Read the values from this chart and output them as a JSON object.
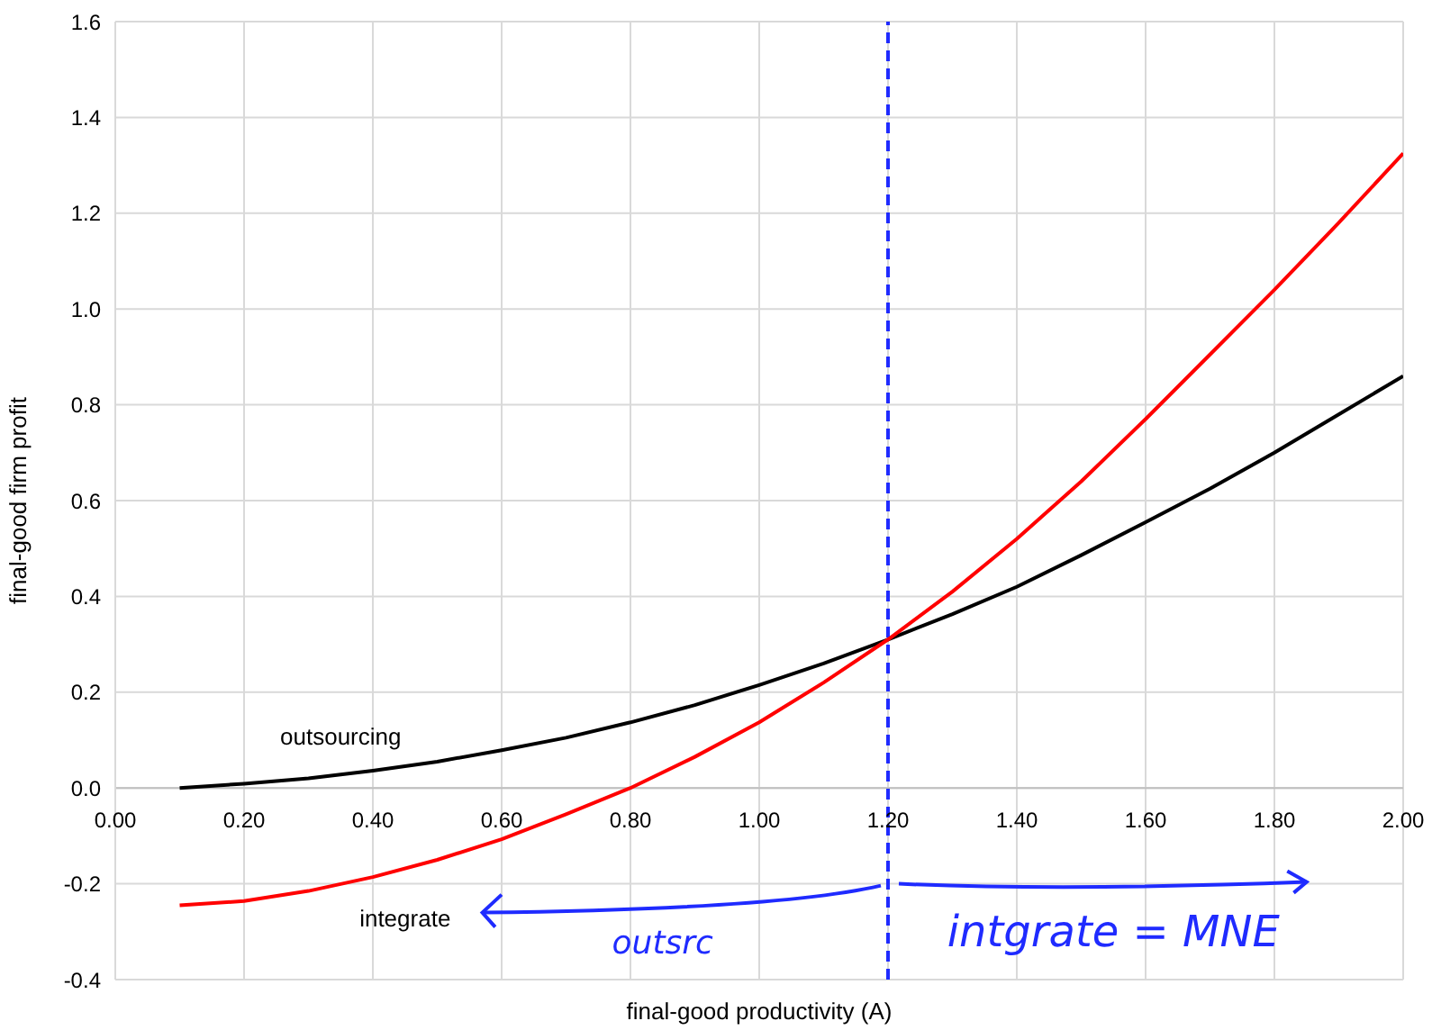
{
  "chart_data": {
    "type": "line",
    "xlabel": "final-good productivity (A)",
    "ylabel": "final-good firm profit",
    "x": [
      0.1,
      0.2,
      0.3,
      0.4,
      0.5,
      0.6,
      0.7,
      0.8,
      0.9,
      1.0,
      1.1,
      1.2,
      1.3,
      1.4,
      1.5,
      1.6,
      1.7,
      1.8,
      1.9,
      2.0
    ],
    "series": [
      {
        "name": "outsourcing",
        "color": "#000000",
        "values": [
          0,
          0.009,
          0.02,
          0.036,
          0.055,
          0.079,
          0.105,
          0.137,
          0.173,
          0.215,
          0.26,
          0.31,
          0.363,
          0.42,
          0.486,
          0.555,
          0.625,
          0.7,
          0.78,
          0.86
        ]
      },
      {
        "name": "integrate",
        "color": "#ff0000",
        "values": [
          -0.245,
          -0.236,
          -0.215,
          -0.186,
          -0.15,
          -0.107,
          -0.055,
          0,
          0.065,
          0.137,
          0.22,
          0.31,
          0.41,
          0.52,
          0.64,
          0.77,
          0.905,
          1.04,
          1.18,
          1.325
        ]
      }
    ],
    "xlim": [
      0,
      2
    ],
    "xticks": [
      {
        "value": 0,
        "label": "0.00"
      },
      {
        "value": 0.2,
        "label": "0.20"
      },
      {
        "value": 0.4,
        "label": "0.40"
      },
      {
        "value": 0.6,
        "label": "0.60"
      },
      {
        "value": 0.8,
        "label": "0.80"
      },
      {
        "value": 1,
        "label": "1.00"
      },
      {
        "value": 1.2,
        "label": "1.20"
      },
      {
        "value": 1.4,
        "label": "1.40"
      },
      {
        "value": 1.6,
        "label": "1.60"
      },
      {
        "value": 1.8,
        "label": "1.80"
      },
      {
        "value": 2,
        "label": "2.00"
      }
    ],
    "ylim": [
      -0.4,
      1.6
    ],
    "yticks": [
      {
        "value": -0.4,
        "label": "-0.4"
      },
      {
        "value": -0.2,
        "label": "-0.2"
      },
      {
        "value": 0,
        "label": "0.0"
      },
      {
        "value": 0.2,
        "label": "0.2"
      },
      {
        "value": 0.4,
        "label": "0.4"
      },
      {
        "value": 0.6,
        "label": "0.6"
      },
      {
        "value": 0.8,
        "label": "0.8"
      },
      {
        "value": 1,
        "label": "1.0"
      },
      {
        "value": 1.2,
        "label": "1.2"
      },
      {
        "value": 1.4,
        "label": "1.4"
      },
      {
        "value": 1.6,
        "label": "1.6"
      }
    ],
    "ref_lines": [
      {
        "axis": "x",
        "value": 1.2,
        "color": "#1f2bff",
        "line_style": "dashed"
      }
    ],
    "annotations": [
      "outsrc",
      "intgrate = MNE"
    ],
    "grid": true,
    "legend": false,
    "marker": "none",
    "line_style": "solid"
  }
}
